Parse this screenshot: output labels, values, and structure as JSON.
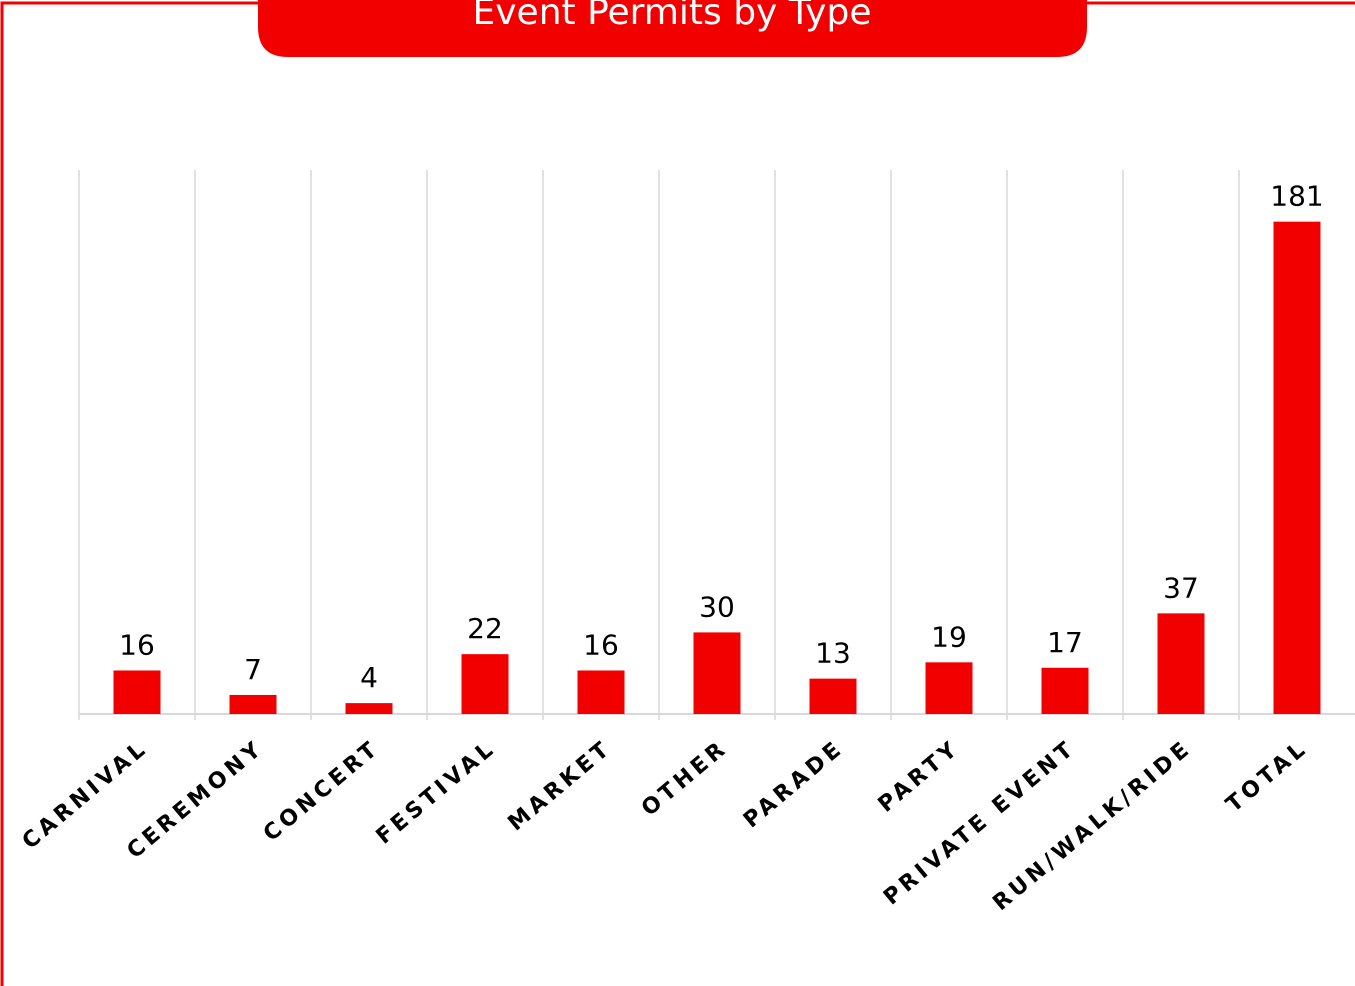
{
  "chart_data": {
    "type": "bar",
    "title": "Event Permits by Type",
    "categories": [
      "CARNIVAL",
      "CEREMONY",
      "CONCERT",
      "FESTIVAL",
      "MARKET",
      "OTHER",
      "PARADE",
      "PARTY",
      "PRIVATE EVENT",
      "RUN/WALK/RIDE",
      "TOTAL"
    ],
    "values": [
      16,
      7,
      4,
      22,
      16,
      30,
      13,
      19,
      17,
      37,
      181
    ],
    "color": "#f20000",
    "ylim": [
      0,
      200
    ]
  }
}
